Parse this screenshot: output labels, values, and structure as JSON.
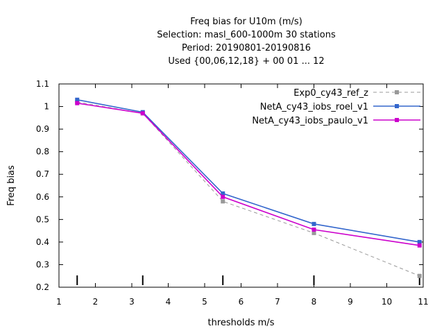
{
  "chart_data": {
    "type": "line",
    "title_lines": [
      "Freq bias  for U10m (m/s)",
      "Selection: masl_600-1000m     30 stations",
      "Period: 20190801-20190816",
      "Used {00,06,12,18} + 00 01 ... 12"
    ],
    "xlabel": "thresholds m/s",
    "ylabel": "Freq bias",
    "xlim": [
      1,
      11
    ],
    "ylim": [
      0.2,
      1.1
    ],
    "xticks": [
      1,
      2,
      3,
      4,
      5,
      6,
      7,
      8,
      9,
      10,
      11
    ],
    "yticks": [
      0.2,
      0.3,
      0.4,
      0.5,
      0.6,
      0.7,
      0.8,
      0.9,
      1,
      1.1
    ],
    "threshold_markers": [
      1.5,
      3.3,
      5.5,
      8,
      10.9
    ],
    "legend_position": "top-right",
    "grid": false,
    "series": [
      {
        "name": "Exp0_cy43_ref_z",
        "color": "#999999",
        "dashed": true,
        "x": [
          1.5,
          3.3,
          5.5,
          8,
          10.9
        ],
        "y": [
          1.02,
          0.97,
          0.58,
          0.44,
          0.25
        ]
      },
      {
        "name": "NetA_cy43_iobs_roel_v1",
        "color": "#3366cc",
        "dashed": false,
        "x": [
          1.5,
          3.3,
          5.5,
          8,
          10.9
        ],
        "y": [
          1.03,
          0.975,
          0.615,
          0.48,
          0.4
        ]
      },
      {
        "name": "NetA_cy43_iobs_paulo_v1",
        "color": "#cc00cc",
        "dashed": false,
        "x": [
          1.5,
          3.3,
          5.5,
          8,
          10.9
        ],
        "y": [
          1.015,
          0.97,
          0.6,
          0.455,
          0.385
        ]
      }
    ]
  }
}
